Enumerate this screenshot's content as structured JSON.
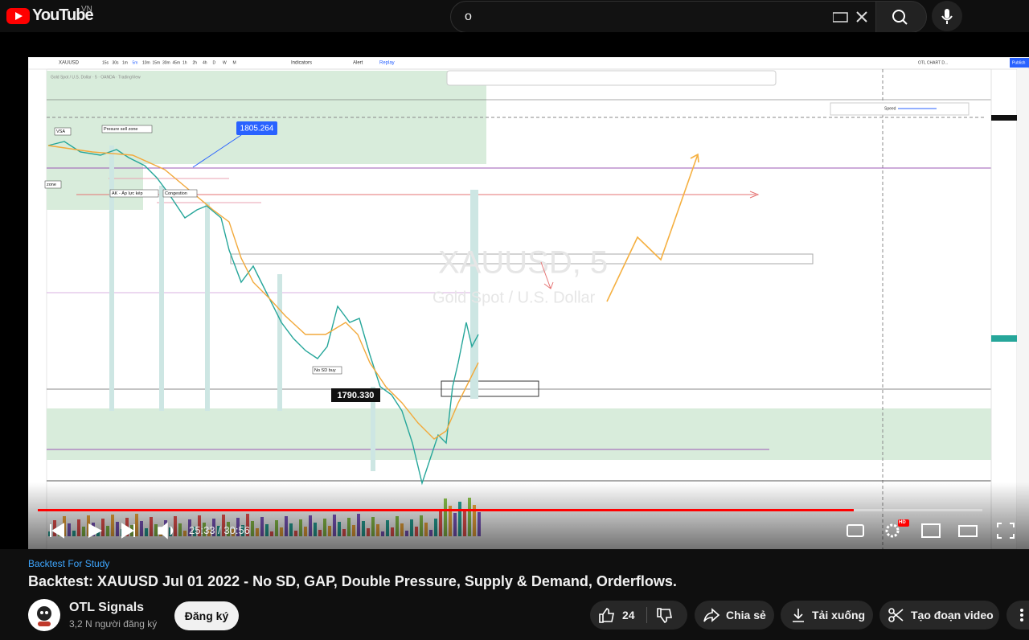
{
  "header": {
    "logo": "YouTube",
    "region": "VN",
    "search_query": "o"
  },
  "video": {
    "chart": {
      "symbol": "XAUUSD",
      "timeframes": [
        "15s",
        "30s",
        "1m",
        "5m",
        "10m",
        "15m",
        "30m",
        "45m",
        "1h",
        "2h",
        "4h",
        "D",
        "W",
        "M"
      ],
      "toolbar": {
        "indicators": "Indicators",
        "alert": "Alert",
        "replay": "Replay",
        "layout": "OTL CHART D...",
        "publish": "Publish"
      },
      "legend": "Gold Spot / U.S. Dollar · 5 · OANDA · TradingView",
      "watermark_symbol": "XAUUSD, 5",
      "watermark_name": "Gold Spot / U.S. Dollar",
      "annotations": [
        "VSA",
        "Presure sell zone",
        "zone",
        "AK - Áp lực kép",
        "Congestion",
        "No SD buy"
      ],
      "price_labels": [
        "1805.264",
        "1790.330"
      ],
      "replay_speed": "Speed"
    },
    "controls": {
      "time": "25:33 / 30:56",
      "quality_badge": "HD"
    }
  },
  "channel_tag": "Backtest For Study",
  "title": "Backtest: XAUUSD Jul 01 2022 - No SD, GAP, Double Pressure, Supply & Demand, Orderflows.",
  "channel": {
    "name": "OTL Signals",
    "subscribers": "3,2 N người đăng ký",
    "subscribe": "Đăng ký"
  },
  "actions": {
    "likes": "24",
    "share": "Chia sẻ",
    "download": "Tải xuống",
    "clip": "Tạo đoạn video"
  }
}
